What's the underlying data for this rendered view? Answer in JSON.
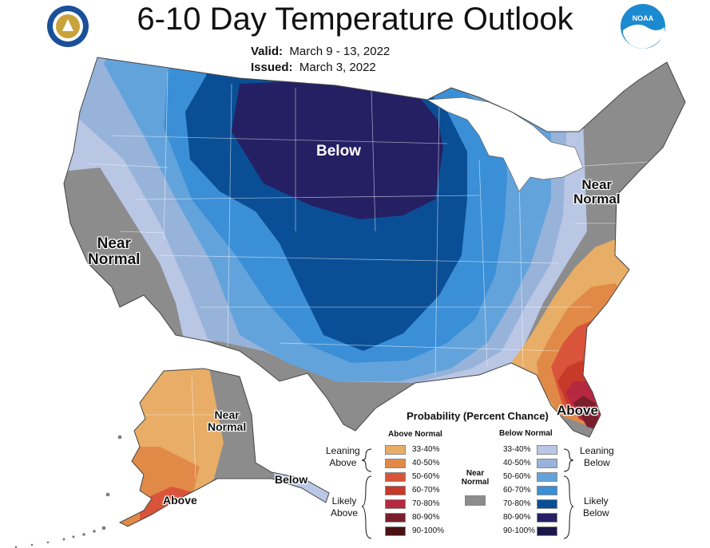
{
  "title": "6-10 Day Temperature Outlook",
  "valid": {
    "label": "Valid:",
    "value": "March 9 - 13, 2022"
  },
  "issued": {
    "label": "Issued:",
    "value": "March 3, 2022"
  },
  "logos": {
    "left": "department-of-commerce-seal",
    "right": "noaa-logo",
    "noaa_text": "NOAA"
  },
  "map_labels": {
    "below_main": "Below",
    "near_normal_west_1": "Near",
    "near_normal_west_2": "Normal",
    "near_normal_east_1": "Near",
    "near_normal_east_2": "Normal",
    "above_fl": "Above",
    "ak_near_1": "Near",
    "ak_near_2": "Normal",
    "ak_below": "Below",
    "ak_above": "Above"
  },
  "legend": {
    "title": "Probability (Percent Chance)",
    "above_title": "Above Normal",
    "below_title": "Below Normal",
    "near_title_1": "Near",
    "near_title_2": "Normal",
    "near_color": "#8c8c8c",
    "leaning_above_1": "Leaning",
    "leaning_above_2": "Above",
    "likely_above_1": "Likely",
    "likely_above_2": "Above",
    "leaning_below_1": "Leaning",
    "leaning_below_2": "Below",
    "likely_below_1": "Likely",
    "likely_below_2": "Below",
    "above": [
      {
        "label": "33-40%",
        "color": "#e8ad66"
      },
      {
        "label": "40-50%",
        "color": "#e18a47"
      },
      {
        "label": "50-60%",
        "color": "#d9543a"
      },
      {
        "label": "60-70%",
        "color": "#c73a2a"
      },
      {
        "label": "70-80%",
        "color": "#b5283f"
      },
      {
        "label": "80-90%",
        "color": "#7a1e2c"
      },
      {
        "label": "90-100%",
        "color": "#4a1114"
      }
    ],
    "below": [
      {
        "label": "33-40%",
        "color": "#b9c6e4"
      },
      {
        "label": "40-50%",
        "color": "#97b3da"
      },
      {
        "label": "50-60%",
        "color": "#63a3dc"
      },
      {
        "label": "60-70%",
        "color": "#3b8fd6"
      },
      {
        "label": "70-80%",
        "color": "#0a4f96"
      },
      {
        "label": "80-90%",
        "color": "#252064"
      },
      {
        "label": "90-100%",
        "color": "#1b1648"
      }
    ]
  }
}
